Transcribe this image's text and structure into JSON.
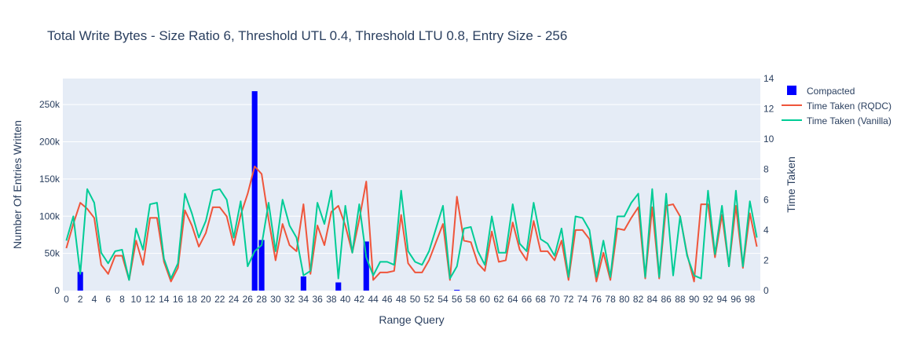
{
  "chart_data": {
    "type": "bar+line",
    "title": "Total Write Bytes - Size Ratio 6, Threshold UTL 0.4, Threshold LTU 0.8, Entry Size - 256",
    "xlabel": "Range Query",
    "ylabel": "Number Of Entries Written",
    "y2label": "Time Taken",
    "xlim": [
      -0.5,
      99.5
    ],
    "ylim": [
      0,
      285000
    ],
    "y2lim": [
      0,
      14
    ],
    "x_ticks": [
      "0",
      "2",
      "4",
      "6",
      "8",
      "10",
      "12",
      "14",
      "16",
      "18",
      "20",
      "22",
      "24",
      "26",
      "28",
      "30",
      "32",
      "34",
      "36",
      "38",
      "40",
      "42",
      "44",
      "46",
      "48",
      "50",
      "52",
      "54",
      "56",
      "58",
      "60",
      "62",
      "64",
      "66",
      "68",
      "70",
      "72",
      "74",
      "76",
      "78",
      "80",
      "82",
      "84",
      "86",
      "88",
      "90",
      "92",
      "94",
      "96",
      "98"
    ],
    "y_ticks": [
      {
        "value": 0,
        "label": "0"
      },
      {
        "value": 50000,
        "label": "50k"
      },
      {
        "value": 100000,
        "label": "100k"
      },
      {
        "value": 150000,
        "label": "150k"
      },
      {
        "value": 200000,
        "label": "200k"
      },
      {
        "value": 250000,
        "label": "250k"
      }
    ],
    "y2_ticks": [
      {
        "value": 0,
        "label": "0"
      },
      {
        "value": 2,
        "label": "2"
      },
      {
        "value": 4,
        "label": "4"
      },
      {
        "value": 6,
        "label": "6"
      },
      {
        "value": 8,
        "label": "8"
      },
      {
        "value": 10,
        "label": "10"
      },
      {
        "value": 12,
        "label": "12"
      },
      {
        "value": 14,
        "label": "14"
      }
    ],
    "grid": true,
    "legend_position": "top-right",
    "bars": {
      "name": "Compacted",
      "color": "#0000ff",
      "points": [
        {
          "x": 2,
          "y": 25000
        },
        {
          "x": 27,
          "y": 268000
        },
        {
          "x": 28,
          "y": 68000
        },
        {
          "x": 34,
          "y": 19000
        },
        {
          "x": 39,
          "y": 11000
        },
        {
          "x": 43,
          "y": 66000
        },
        {
          "x": 56,
          "y": 1000
        }
      ]
    },
    "series": [
      {
        "name": "Time Taken (RQDC)",
        "color": "#ef553b",
        "axis": "y2",
        "values": [
          2.8,
          4.4,
          5.8,
          5.4,
          4.8,
          1.7,
          1.1,
          2.3,
          2.3,
          0.7,
          3.3,
          1.7,
          4.8,
          4.8,
          1.9,
          0.6,
          1.5,
          5.3,
          4.3,
          2.9,
          3.8,
          5.5,
          5.5,
          4.9,
          3.0,
          5.0,
          6.4,
          8.2,
          7.7,
          4.7,
          2.0,
          4.4,
          3.0,
          2.6,
          5.7,
          1.1,
          4.3,
          3.0,
          5.2,
          5.6,
          4.3,
          2.5,
          4.7,
          7.2,
          0.7,
          1.2,
          1.2,
          1.3,
          5.0,
          1.8,
          1.2,
          1.2,
          2.0,
          3.2,
          4.4,
          0.7,
          6.2,
          3.3,
          3.2,
          1.8,
          1.3,
          3.9,
          1.9,
          2.0,
          4.5,
          2.7,
          2.0,
          4.6,
          2.6,
          2.6,
          2.0,
          3.3,
          0.7,
          4.0,
          4.0,
          3.4,
          0.6,
          2.5,
          0.7,
          4.1,
          4.0,
          4.8,
          5.5,
          0.8,
          5.5,
          0.8,
          5.6,
          5.7,
          4.9,
          2.4,
          0.6,
          5.7,
          5.7,
          2.2,
          5.0,
          1.6,
          5.6,
          1.5,
          5.1,
          2.9
        ]
      },
      {
        "name": "Time Taken (Vanilla)",
        "color": "#00cc96",
        "axis": "y2",
        "values": [
          3.3,
          4.9,
          1.1,
          6.7,
          5.8,
          2.5,
          1.8,
          2.6,
          2.7,
          0.7,
          4.1,
          2.7,
          5.7,
          5.8,
          2.1,
          0.8,
          1.8,
          6.4,
          5.1,
          3.5,
          4.6,
          6.6,
          6.7,
          6.0,
          3.5,
          5.9,
          1.6,
          2.6,
          3.0,
          5.8,
          2.6,
          6.0,
          4.3,
          3.5,
          1.0,
          1.3,
          5.8,
          4.4,
          6.6,
          0.8,
          5.6,
          2.5,
          5.7,
          2.2,
          1.0,
          1.9,
          1.9,
          1.7,
          6.6,
          2.6,
          1.9,
          1.7,
          2.6,
          4.1,
          5.6,
          0.8,
          1.6,
          4.1,
          4.2,
          2.6,
          1.7,
          4.9,
          2.5,
          2.5,
          5.7,
          3.1,
          2.6,
          5.8,
          3.4,
          3.1,
          2.3,
          4.1,
          0.9,
          4.9,
          4.8,
          4.0,
          0.9,
          3.3,
          0.9,
          4.9,
          4.9,
          5.8,
          6.4,
          0.9,
          6.7,
          0.9,
          6.4,
          1.0,
          4.9,
          2.3,
          1.0,
          0.8,
          6.6,
          2.4,
          5.6,
          1.6,
          6.6,
          1.6,
          5.9,
          3.5
        ]
      }
    ]
  }
}
